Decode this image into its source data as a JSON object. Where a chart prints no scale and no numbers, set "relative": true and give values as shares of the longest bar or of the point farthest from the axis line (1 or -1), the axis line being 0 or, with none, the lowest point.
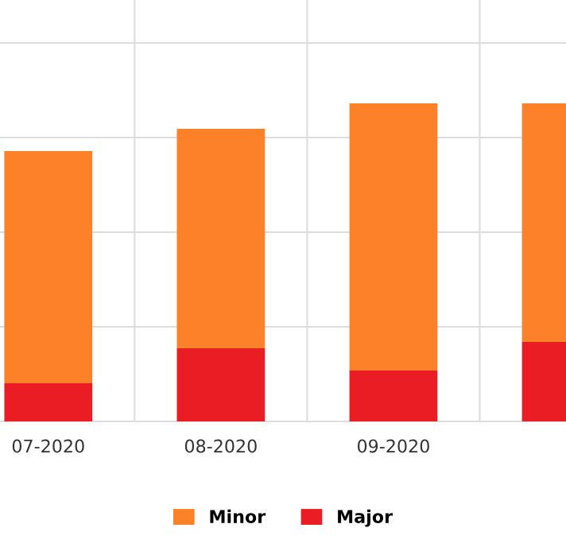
{
  "chart_data": {
    "type": "bar",
    "stacked": true,
    "relative": true,
    "categories": [
      "07-2020",
      "08-2020",
      "09-2020",
      null
    ],
    "series": [
      {
        "name": "Major",
        "color": "#ea1c24",
        "values": [
          0.12,
          0.23,
          0.16,
          0.25
        ]
      },
      {
        "name": "Minor",
        "color": "#fd8128",
        "values": [
          0.73,
          0.69,
          0.84,
          0.75
        ]
      }
    ],
    "legend": "bottom",
    "grid": true
  }
}
